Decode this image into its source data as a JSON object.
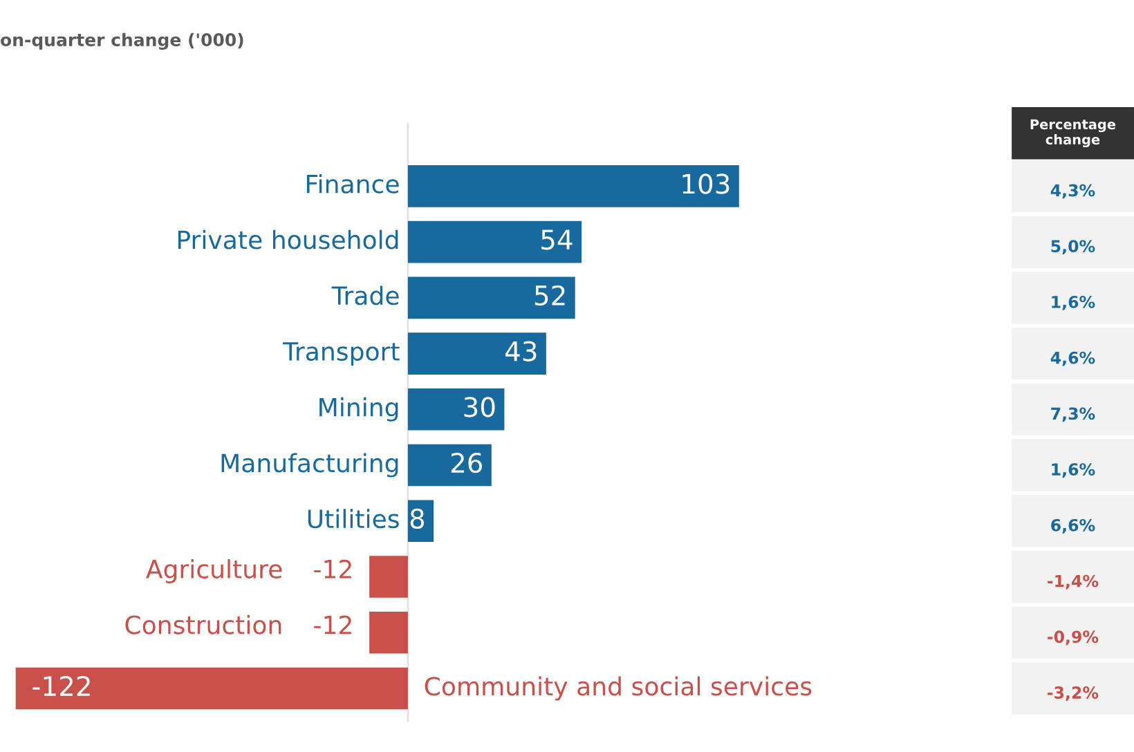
{
  "chart_data": {
    "type": "bar",
    "orientation": "horizontal",
    "title": "on-quarter change ('000)",
    "categories": [
      "Finance",
      "Private household",
      "Trade",
      "Transport",
      "Mining",
      "Manufacturing",
      "Utilities",
      "Agriculture",
      "Construction",
      "Community and social services"
    ],
    "values": [
      103,
      54,
      52,
      43,
      30,
      26,
      8,
      -12,
      -12,
      -122
    ],
    "colors": [
      "#17699e",
      "#17699e",
      "#17699e",
      "#17699e",
      "#17699e",
      "#17699e",
      "#17699e",
      "#c9504a",
      "#c9504a",
      "#c9504a"
    ],
    "data_labels": true,
    "annotations": [
      "Percentage\nchange",
      "4,3%",
      "5,0%",
      "1,6%",
      "4,6%",
      "7,3%",
      "1,6%",
      "6,6%",
      "-1,4%",
      "-0,9%",
      "-3,2%"
    ]
  }
}
